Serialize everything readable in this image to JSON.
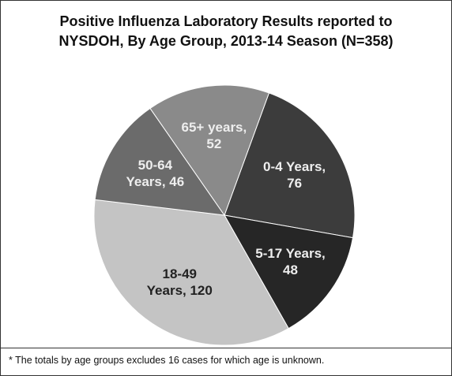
{
  "chart_data": {
    "type": "pie",
    "title": "Positive Influenza Laboratory Results reported to NYSDOH, By Age Group, 2013-14 Season (N=358)",
    "values": [
      76,
      48,
      120,
      46,
      52
    ],
    "value_labels": [
      "0-4 Years, 76",
      "5-17 Years, 48",
      "18-49 Years, 120",
      "50-64 Years, 46",
      "65+ years, 52"
    ],
    "colors": [
      "#3c3c3c",
      "#262626",
      "#c4c4c4",
      "#6b6b6b",
      "#8a8a8a"
    ],
    "footnote": "* The totals by age groups excludes 16 cases for which age is unknown."
  }
}
